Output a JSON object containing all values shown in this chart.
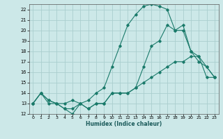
{
  "xlabel": "Humidex (Indice chaleur)",
  "ylabel": "",
  "bg_color": "#cce8e8",
  "grid_color": "#aacece",
  "line_color": "#1a7a6a",
  "xlim": [
    -0.5,
    23.5
  ],
  "ylim": [
    12,
    22.5
  ],
  "xticks": [
    0,
    1,
    2,
    3,
    4,
    5,
    6,
    7,
    8,
    9,
    10,
    11,
    12,
    13,
    14,
    15,
    16,
    17,
    18,
    19,
    20,
    21,
    22,
    23
  ],
  "yticks": [
    12,
    13,
    14,
    15,
    16,
    17,
    18,
    19,
    20,
    21,
    22
  ],
  "curve1_x": [
    0,
    1,
    2,
    3,
    4,
    5,
    6,
    7,
    8,
    9,
    10,
    11,
    12,
    13,
    14,
    15,
    16,
    17,
    18,
    19,
    20,
    21,
    22,
    23
  ],
  "curve1_y": [
    13,
    14,
    13.3,
    13,
    12.5,
    12.5,
    13,
    12.5,
    13,
    13,
    14,
    14,
    14,
    14.5,
    16.5,
    18.5,
    19,
    20.5,
    20,
    20.5,
    18,
    17,
    16.5,
    15.5
  ],
  "curve2_x": [
    0,
    1,
    2,
    3,
    4,
    5,
    6,
    7,
    8,
    9,
    10,
    11,
    12,
    13,
    14,
    15,
    16,
    17,
    18,
    19,
    20,
    21,
    22,
    23
  ],
  "curve2_y": [
    13,
    14,
    13.3,
    13,
    13,
    13.3,
    13,
    13.3,
    14,
    14.5,
    16.5,
    18.5,
    20.5,
    21.5,
    22.3,
    22.5,
    22.3,
    22,
    20,
    20,
    18,
    17.5,
    16.5,
    15.5
  ],
  "curve3_x": [
    0,
    1,
    2,
    3,
    4,
    5,
    6,
    7,
    8,
    9,
    10,
    11,
    12,
    13,
    14,
    15,
    16,
    17,
    18,
    19,
    20,
    21,
    22,
    23
  ],
  "curve3_y": [
    13,
    14,
    13,
    13,
    12.5,
    12,
    13,
    12.5,
    13,
    13,
    14,
    14,
    14,
    14.5,
    15,
    15.5,
    16,
    16.5,
    17,
    17,
    17.5,
    17.5,
    15.5,
    15.5
  ]
}
